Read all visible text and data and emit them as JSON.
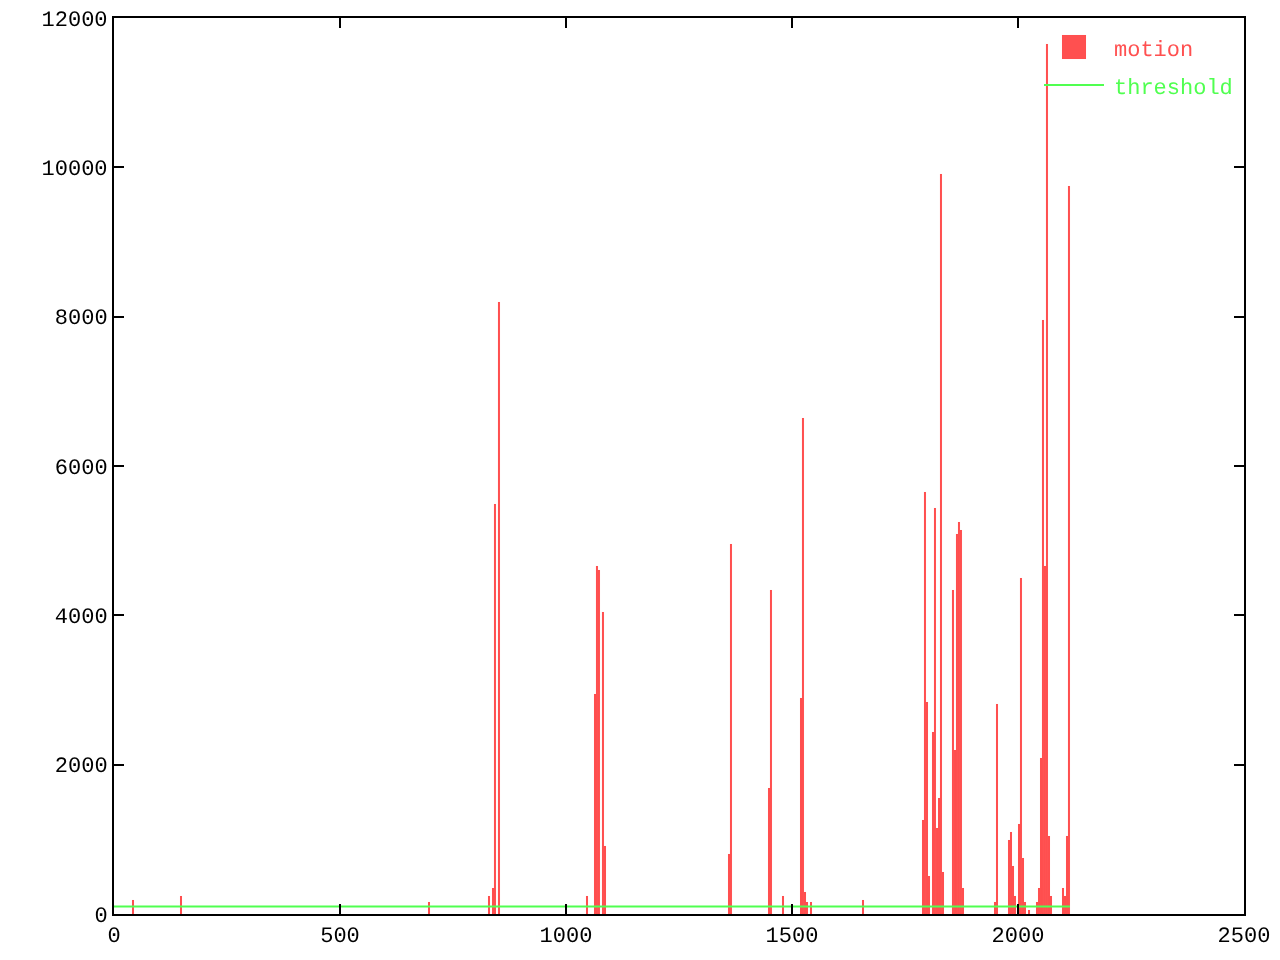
{
  "chart_data": {
    "type": "bar",
    "xlim": [
      0,
      2500
    ],
    "xticks": [
      0,
      500,
      1000,
      1500,
      2000,
      2500
    ],
    "ylim": [
      0,
      12000
    ],
    "yticks": [
      0,
      2000,
      4000,
      6000,
      8000,
      10000,
      12000
    ],
    "grid": false,
    "legend": "top right",
    "series": [
      {
        "name": "motion",
        "color": "#ff5050",
        "x": [
          43,
          150,
          695,
          830,
          840,
          845,
          850,
          1045,
          1065,
          1070,
          1075,
          1080,
          1085,
          1360,
          1365,
          1450,
          1455,
          1480,
          1520,
          1525,
          1530,
          1535,
          1540,
          1657,
          1790,
          1795,
          1800,
          1805,
          1810,
          1815,
          1820,
          1825,
          1830,
          1835,
          1855,
          1860,
          1865,
          1870,
          1875,
          1880,
          1950,
          1955,
          1980,
          1985,
          1990,
          1995,
          2000,
          2005,
          2010,
          2015,
          2025,
          2040,
          2045,
          2050,
          2055,
          2060,
          2065,
          2070,
          2075,
          2100,
          2105,
          2110,
          2115
        ],
        "values": [
          200,
          250,
          150,
          250,
          350,
          5500,
          8200,
          250,
          2950,
          4650,
          4600,
          4050,
          900,
          800,
          4950,
          1700,
          4350,
          250,
          2900,
          6650,
          300,
          150,
          150,
          200,
          1250,
          5650,
          2850,
          500,
          2450,
          5450,
          1150,
          1550,
          9900,
          550,
          4350,
          2200,
          5100,
          5250,
          5150,
          350,
          150,
          2800,
          1000,
          1100,
          650,
          250,
          1200,
          4500,
          750,
          150,
          50,
          150,
          350,
          2100,
          7950,
          4650,
          11650,
          1050,
          250,
          350,
          250,
          1050,
          9750
        ]
      },
      {
        "name": "threshold",
        "type": "line",
        "color": "#50ff50",
        "line_style": "solid",
        "marker": "none",
        "x": [
          0,
          2115
        ],
        "values": [
          100,
          100
        ]
      }
    ]
  }
}
